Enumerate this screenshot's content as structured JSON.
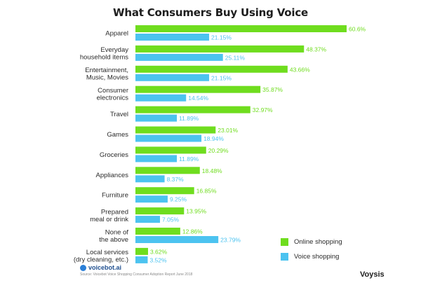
{
  "title": "What Consumers Buy Using Voice",
  "chart_data": {
    "type": "bar",
    "orientation": "horizontal",
    "title": "What Consumers Buy Using Voice",
    "categories": [
      "Apparel",
      "Everyday household items",
      "Entertainment, Music, Movies",
      "Consumer electronics",
      "Travel",
      "Games",
      "Groceries",
      "Appliances",
      "Furniture",
      "Prepared meal or drink",
      "None of the above",
      "Local services (dry cleaning, etc.)"
    ],
    "category_lines": [
      [
        "Apparel"
      ],
      [
        "Everyday",
        "household items"
      ],
      [
        "Entertainment,",
        "Music, Movies"
      ],
      [
        "Consumer",
        "electronics"
      ],
      [
        "Travel"
      ],
      [
        "Games"
      ],
      [
        "Groceries"
      ],
      [
        "Appliances"
      ],
      [
        "Furniture"
      ],
      [
        "Prepared",
        "meal or drink"
      ],
      [
        "None of",
        "the above"
      ],
      [
        "Local services",
        "(dry cleaning, etc.)"
      ]
    ],
    "series": [
      {
        "name": "Online shopping",
        "color": "#6fdd1e",
        "values": [
          60.6,
          48.37,
          43.66,
          35.87,
          32.97,
          23.01,
          20.29,
          18.48,
          16.85,
          13.95,
          12.86,
          3.62
        ],
        "labels": [
          "60.6%",
          "48.37%",
          "43.66%",
          "35.87%",
          "32.97%",
          "23.01%",
          "20.29%",
          "18.48%",
          "16.85%",
          "13.95%",
          "12.86%",
          "3.62%"
        ]
      },
      {
        "name": "Voice shopping",
        "color": "#4cc3f0",
        "values": [
          21.15,
          25.11,
          21.15,
          14.54,
          11.89,
          18.94,
          11.89,
          8.37,
          9.25,
          7.05,
          23.79,
          3.52
        ],
        "labels": [
          "21.15%",
          "25.11%",
          "21.15%",
          "14.54%",
          "11.89%",
          "18.94%",
          "11.89%",
          "8.37%",
          "9.25%",
          "7.05%",
          "23.79%",
          "3.52%"
        ]
      }
    ],
    "xlim": [
      0,
      60.6
    ],
    "legend_position": "bottom-right",
    "grid": false
  },
  "legend": {
    "items": [
      {
        "label": "Online shopping",
        "color": "#6fdd1e"
      },
      {
        "label": "Voice shopping",
        "color": "#4cc3f0"
      }
    ]
  },
  "footer": {
    "brand_left": "voicebot.ai",
    "source": "Source: Voicebot Voice Shopping Consumer Adoption Report June 2018",
    "brand_right": "Voysis"
  }
}
